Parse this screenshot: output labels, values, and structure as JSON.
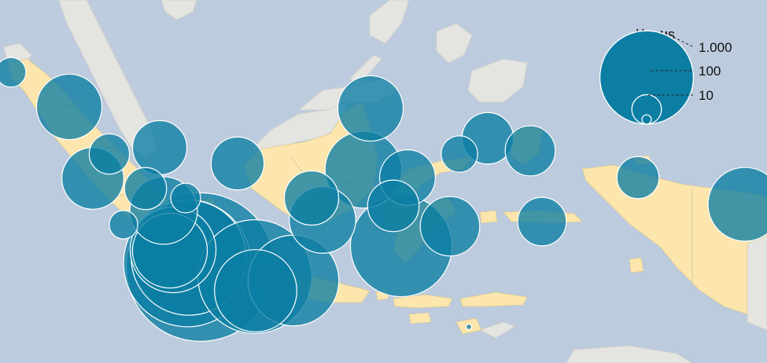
{
  "colors": {
    "sea": "#bccbdd",
    "land_indonesia": "#fce6ad",
    "land_other": "#e4e4e1",
    "border": "#c9c0a6",
    "bubble": "#0c7ea3"
  },
  "legend": {
    "title": "Kasus",
    "items": [
      {
        "label": "1.000",
        "value": 1000
      },
      {
        "label": "100",
        "value": 100
      },
      {
        "label": "10",
        "value": 10
      }
    ]
  },
  "chart_data": {
    "type": "scatter",
    "size_encoding": "cases",
    "title": "",
    "legend_placement": "top-right",
    "points": [
      {
        "value": 60
      },
      {
        "value": 290
      },
      {
        "value": 110
      },
      {
        "value": 260
      },
      {
        "value": 200
      },
      {
        "value": 120
      },
      {
        "value": 310
      },
      {
        "value": 55
      },
      {
        "value": 60
      },
      {
        "value": 190
      },
      {
        "value": 1500
      },
      {
        "value": 1100
      },
      {
        "value": 900
      },
      {
        "value": 500
      },
      {
        "value": 380
      },
      {
        "value": 880
      },
      {
        "value": 460
      },
      {
        "value": 560
      },
      {
        "value": 200
      },
      {
        "value": 300
      },
      {
        "value": 290
      },
      {
        "value": 400
      },
      {
        "value": 210
      },
      {
        "value": 180
      },
      {
        "value": 700
      },
      {
        "value": 240
      },
      {
        "value": 90
      },
      {
        "value": 180
      },
      {
        "value": 170
      },
      {
        "value": 160
      },
      {
        "value": 120
      },
      {
        "value": 370
      },
      {
        "value": 2
      }
    ]
  }
}
